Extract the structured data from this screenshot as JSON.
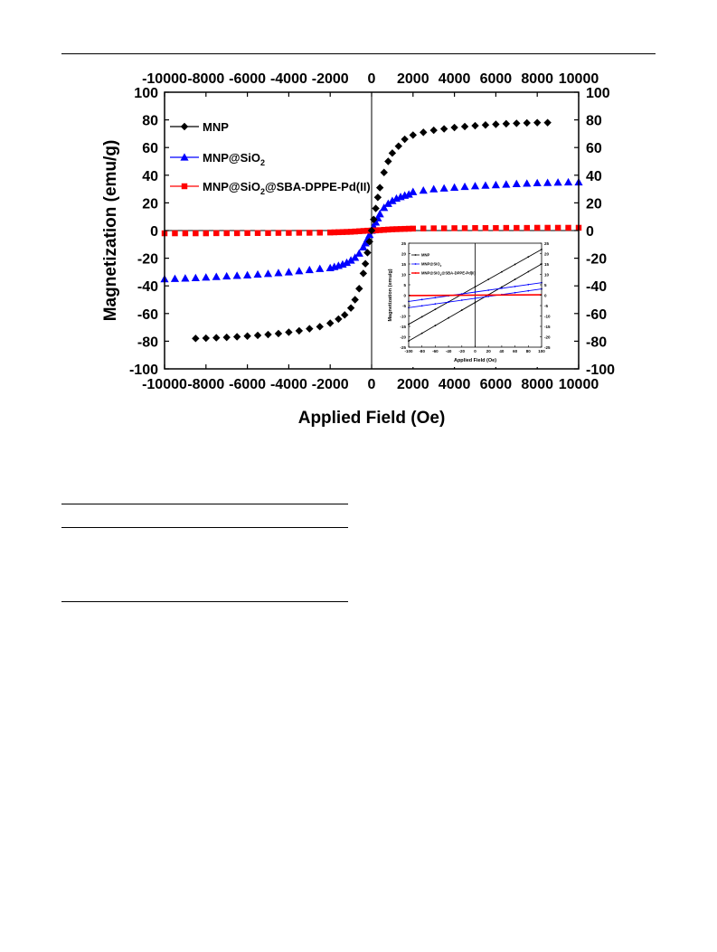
{
  "chart_data": [
    {
      "type": "scatter",
      "title": "",
      "xlabel": "Applied Field (Oe)",
      "ylabel": "Magnetization (emu/g)",
      "xlim": [
        -10000,
        10000
      ],
      "ylim": [
        -100,
        100
      ],
      "x_ticks": [
        -10000,
        -8000,
        -6000,
        -4000,
        -2000,
        0,
        2000,
        4000,
        6000,
        8000,
        10000
      ],
      "y_ticks": [
        -100,
        -80,
        -60,
        -40,
        -20,
        0,
        20,
        40,
        60,
        80,
        100
      ],
      "mirror_axes": true,
      "legend_position": "top-left",
      "series": [
        {
          "name": "MNP",
          "color": "#000000",
          "marker": "diamond",
          "x": [
            -8500,
            -8000,
            -7500,
            -7000,
            -6500,
            -6000,
            -5500,
            -5000,
            -4500,
            -4000,
            -3500,
            -3000,
            -2500,
            -2000,
            -1600,
            -1300,
            -1000,
            -800,
            -600,
            -400,
            -300,
            -200,
            -100,
            0,
            100,
            200,
            300,
            400,
            600,
            800,
            1000,
            1300,
            1600,
            2000,
            2500,
            3000,
            3500,
            4000,
            4500,
            5000,
            5500,
            6000,
            6500,
            7000,
            7500,
            8000,
            8500
          ],
          "y": [
            -78,
            -77.8,
            -77.5,
            -77.2,
            -76.8,
            -76.3,
            -75.8,
            -75.2,
            -74.5,
            -73.5,
            -72.5,
            -71,
            -69.5,
            -67,
            -64,
            -61,
            -56,
            -50,
            -42,
            -31,
            -24,
            -16,
            -8,
            0,
            8,
            16,
            24,
            31,
            42,
            50,
            56,
            61,
            66,
            69,
            71,
            72.5,
            73.5,
            74.5,
            75.2,
            75.8,
            76.3,
            76.8,
            77.2,
            77.5,
            77.8,
            78,
            78
          ]
        },
        {
          "name": "MNP@SiO2",
          "color": "#0000ff",
          "marker": "triangle",
          "x": [
            -10000,
            -9500,
            -9000,
            -8500,
            -8000,
            -7500,
            -7000,
            -6500,
            -6000,
            -5500,
            -5000,
            -4500,
            -4000,
            -3500,
            -3000,
            -2500,
            -2000,
            -1800,
            -1600,
            -1400,
            -1200,
            -1000,
            -800,
            -600,
            -400,
            -300,
            -200,
            -100,
            0,
            100,
            200,
            300,
            400,
            600,
            800,
            1000,
            1200,
            1400,
            1600,
            1800,
            2000,
            2500,
            3000,
            3500,
            4000,
            4500,
            5000,
            5500,
            6000,
            6500,
            7000,
            7500,
            8000,
            8500,
            9000,
            9500,
            10000
          ],
          "y": [
            -35,
            -34.8,
            -34.5,
            -34.2,
            -33.8,
            -33.4,
            -33,
            -32.6,
            -32.2,
            -31.7,
            -31.2,
            -30.6,
            -30,
            -29.2,
            -28.4,
            -27.6,
            -27,
            -26.2,
            -25.4,
            -24.4,
            -23.2,
            -21.5,
            -19.5,
            -16.5,
            -12,
            -9,
            -6,
            -3,
            0,
            3,
            6,
            9,
            12,
            16.5,
            19.5,
            21.5,
            23.2,
            24.4,
            25.4,
            26.2,
            28,
            29,
            30,
            30.6,
            31.2,
            31.7,
            32.2,
            32.6,
            33,
            33.4,
            33.8,
            34.1,
            34.4,
            34.6,
            34.8,
            35,
            35
          ]
        },
        {
          "name": "MNP@SiO2@SBA-DPPE-Pd(II)",
          "color": "#ff0000",
          "marker": "square",
          "x": [
            -10000,
            -9500,
            -9000,
            -8500,
            -8000,
            -7500,
            -7000,
            -6500,
            -6000,
            -5500,
            -5000,
            -4500,
            -4000,
            -3500,
            -3000,
            -2500,
            -2000,
            -1800,
            -1600,
            -1400,
            -1200,
            -1000,
            -800,
            -600,
            -400,
            -200,
            0,
            200,
            400,
            600,
            800,
            1000,
            1200,
            1400,
            1600,
            1800,
            2000,
            2500,
            3000,
            3500,
            4000,
            4500,
            5000,
            5500,
            6000,
            6500,
            7000,
            7500,
            8000,
            8500,
            9000,
            9500,
            10000
          ],
          "y": [
            -2,
            -2,
            -2,
            -2,
            -2,
            -1.9,
            -1.9,
            -1.9,
            -1.8,
            -1.8,
            -1.8,
            -1.7,
            -1.7,
            -1.6,
            -1.6,
            -1.5,
            -1.4,
            -1.3,
            -1.2,
            -1.1,
            -1,
            -0.9,
            -0.7,
            -0.5,
            -0.3,
            -0.1,
            0,
            0.1,
            0.3,
            0.5,
            0.7,
            0.9,
            1,
            1.1,
            1.2,
            1.3,
            1.4,
            1.5,
            1.6,
            1.6,
            1.7,
            1.7,
            1.8,
            1.8,
            1.8,
            1.9,
            1.9,
            1.9,
            2,
            2,
            2,
            2,
            2
          ]
        }
      ],
      "legend_labels": [
        {
          "main": "MNP",
          "sub": "",
          "rest": ""
        },
        {
          "main": "MNP@SiO",
          "sub": "2",
          "rest": ""
        },
        {
          "main": "MNP@SiO",
          "sub": "2",
          "rest": "@SBA-DPPE-Pd(II)"
        }
      ]
    },
    {
      "type": "line",
      "role": "inset",
      "title": "",
      "xlabel": "Applied Field (Oe)",
      "ylabel": "Magnetization (emu/g)",
      "xlim": [
        -100,
        100
      ],
      "ylim": [
        -25,
        25
      ],
      "x_ticks": [
        -100,
        -80,
        -60,
        -40,
        -20,
        0,
        20,
        40,
        60,
        80,
        100
      ],
      "y_ticks": [
        -25,
        -20,
        -15,
        -10,
        -5,
        0,
        5,
        10,
        15,
        20,
        25
      ],
      "series": [
        {
          "name": "MNP",
          "color": "#000000",
          "x": [
            -100,
            100
          ],
          "y": [
            -14,
            22
          ]
        },
        {
          "name": "MNP",
          "color": "#000000",
          "x": [
            -100,
            100
          ],
          "y": [
            -22,
            15
          ]
        },
        {
          "name": "MNP@SiO2",
          "color": "#0000ff",
          "x": [
            -100,
            100
          ],
          "y": [
            -3,
            6
          ]
        },
        {
          "name": "MNP@SiO2",
          "color": "#0000ff",
          "x": [
            -100,
            100
          ],
          "y": [
            -6,
            3
          ]
        },
        {
          "name": "MNP@SiO2@SBA-DPPE-Pd(II)",
          "color": "#ff0000",
          "x": [
            -100,
            100
          ],
          "y": [
            -0.2,
            0.2
          ]
        }
      ],
      "legend_labels": [
        {
          "main": "MNP",
          "sub": "",
          "rest": ""
        },
        {
          "main": "MNP@SiO",
          "sub": "2",
          "rest": ""
        },
        {
          "main": "MNP@SiO",
          "sub": "2",
          "rest": "@SBA-DPPE-Pd(II)"
        }
      ]
    }
  ]
}
